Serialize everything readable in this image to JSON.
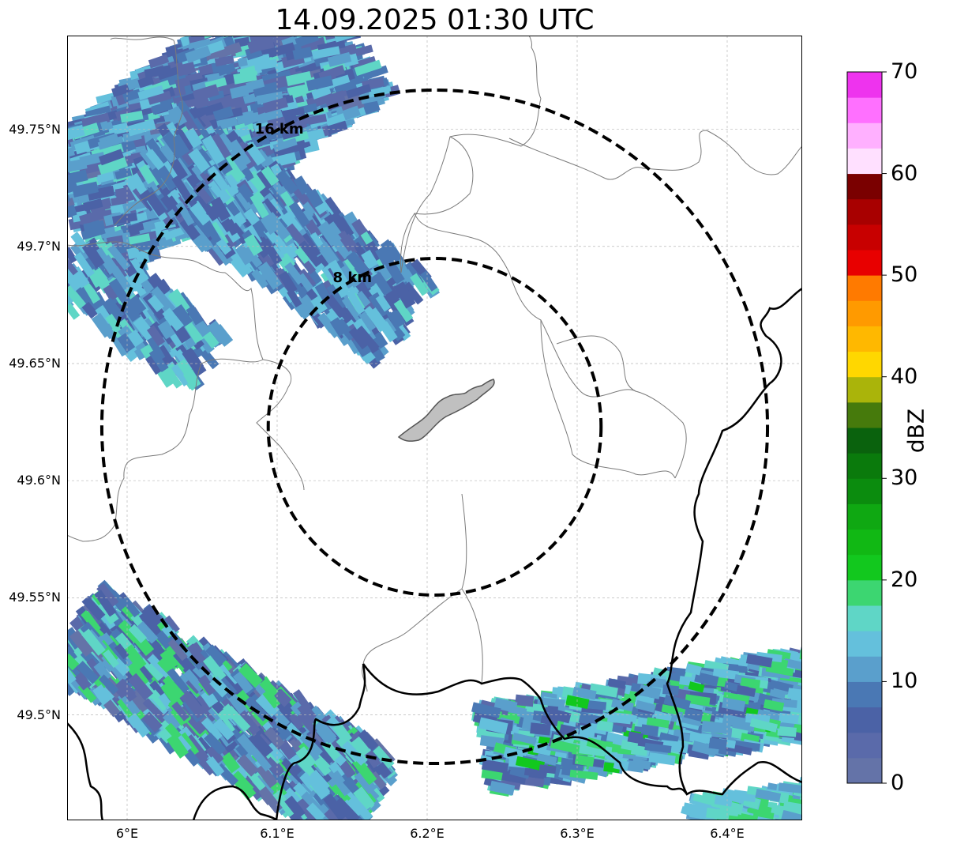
{
  "title": "14.09.2025 01:30 UTC",
  "map": {
    "extent": {
      "lon_min": 5.96,
      "lon_max": 6.45,
      "lat_min": 49.455,
      "lat_max": 49.79
    },
    "lat_ticks": [
      {
        "value": 49.75,
        "label": "49.75°N"
      },
      {
        "value": 49.7,
        "label": "49.7°N"
      },
      {
        "value": 49.65,
        "label": "49.65°N"
      },
      {
        "value": 49.6,
        "label": "49.6°N"
      },
      {
        "value": 49.55,
        "label": "49.55°N"
      },
      {
        "value": 49.5,
        "label": "49.5°N"
      }
    ],
    "lon_ticks": [
      {
        "value": 6.0,
        "label": "6°E"
      },
      {
        "value": 6.1,
        "label": "6.1°E"
      },
      {
        "value": 6.2,
        "label": "6.2°E"
      },
      {
        "value": 6.3,
        "label": "6.3°E"
      },
      {
        "value": 6.4,
        "label": "6.4°E"
      }
    ],
    "center": {
      "lon": 6.205,
      "lat": 49.623
    },
    "range_rings": [
      {
        "radius_km": 8,
        "label": "8 km"
      },
      {
        "radius_km": 16,
        "label": "16 km"
      }
    ],
    "grid": true,
    "colors": {
      "ring": "#000000",
      "grid": "#b8b8b8",
      "admin_border": "#7a7a7a",
      "country_border": "#000000",
      "city_fill": "#c0c0c0",
      "city_edge": "#555555"
    }
  },
  "colorbar": {
    "label": "dBZ",
    "min": 0,
    "max": 70,
    "step": 2.5,
    "ticks": [
      {
        "value": 0,
        "label": "0"
      },
      {
        "value": 10,
        "label": "10"
      },
      {
        "value": 20,
        "label": "20"
      },
      {
        "value": 30,
        "label": "30"
      },
      {
        "value": 40,
        "label": "40"
      },
      {
        "value": 50,
        "label": "50"
      },
      {
        "value": 60,
        "label": "60"
      },
      {
        "value": 70,
        "label": "70"
      }
    ],
    "colors": [
      "#6473a8",
      "#5a6aaa",
      "#4b62a6",
      "#4a78b4",
      "#5a9fcc",
      "#64c0dc",
      "#5fd6c6",
      "#3cd671",
      "#12c81e",
      "#11b814",
      "#0fa812",
      "#0b8c0e",
      "#0a7a0c",
      "#0a620d",
      "#467a0c",
      "#aab40a",
      "#ffd700",
      "#ffb800",
      "#ff9a00",
      "#ff7a00",
      "#e80000",
      "#c80000",
      "#a80000",
      "#7a0000",
      "#ffe0ff",
      "#ffb0ff",
      "#ff70ff",
      "#ee33ee"
    ]
  }
}
